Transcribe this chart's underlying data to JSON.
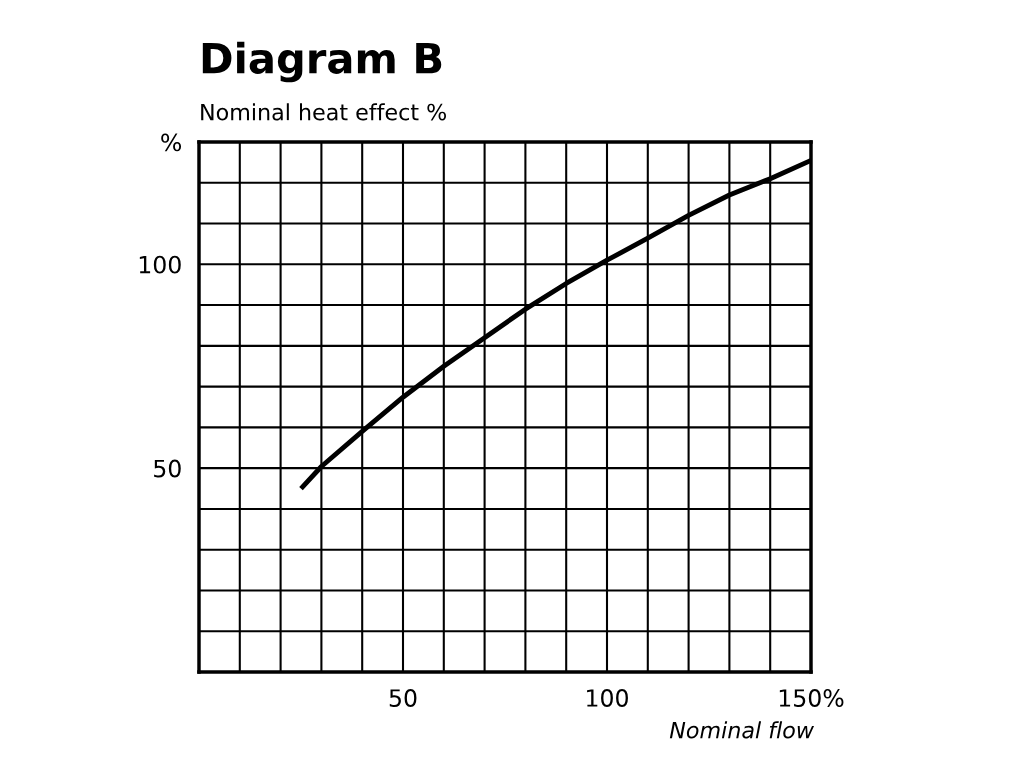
{
  "chart_data": {
    "type": "line",
    "title": "Diagram B",
    "ylabel": "Nominal heat effect %",
    "xlabel": "Nominal flow",
    "x": [
      25,
      30,
      40,
      50,
      60,
      70,
      80,
      90,
      100,
      110,
      120,
      130,
      140,
      150
    ],
    "series": [
      {
        "color": "#000000",
        "values": [
          45,
          50.4,
          59,
          67.4,
          75,
          82,
          89,
          95.3,
          101,
          106.4,
          112,
          117,
          121,
          125.5
        ]
      }
    ],
    "xlim": [
      0,
      150
    ],
    "ylim": [
      0,
      130
    ],
    "xticks": [
      {
        "value": 10,
        "label": null
      },
      {
        "value": 20,
        "label": null
      },
      {
        "value": 30,
        "label": null
      },
      {
        "value": 40,
        "label": null
      },
      50,
      {
        "value": 60,
        "label": null
      },
      {
        "value": 70,
        "label": null
      },
      {
        "value": 80,
        "label": null
      },
      {
        "value": 90,
        "label": null
      },
      100,
      {
        "value": 110,
        "label": null
      },
      {
        "value": 120,
        "label": null
      },
      {
        "value": 130,
        "label": null
      },
      {
        "value": 140,
        "label": null
      },
      {
        "value": 150,
        "label": "150%"
      }
    ],
    "yticks": [
      {
        "value": 10,
        "label": null
      },
      {
        "value": 20,
        "label": null
      },
      {
        "value": 30,
        "label": null
      },
      {
        "value": 40,
        "label": null
      },
      50,
      {
        "value": 60,
        "label": null
      },
      {
        "value": 70,
        "label": null
      },
      {
        "value": 80,
        "label": null
      },
      {
        "value": 90,
        "label": null
      },
      100,
      {
        "value": 110,
        "label": null
      },
      {
        "value": 120,
        "label": null
      },
      {
        "value": 130,
        "label": "%"
      }
    ],
    "grid": true,
    "legend": false,
    "marker": "none",
    "line_style": "solid"
  }
}
